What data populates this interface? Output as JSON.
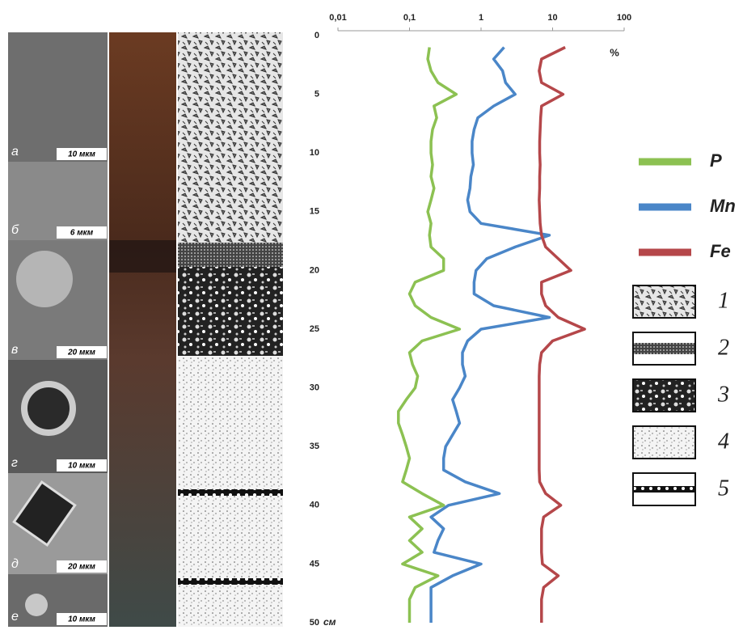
{
  "panels": [
    {
      "letter": "а",
      "scale": "10 мкм"
    },
    {
      "letter": "б",
      "scale": "6 мкм"
    },
    {
      "letter": "в",
      "scale": "20 мкм"
    },
    {
      "letter": "г",
      "scale": "10 мкм"
    },
    {
      "letter": "д",
      "scale": "20 мкм"
    },
    {
      "letter": "е",
      "scale": "10 мкм"
    }
  ],
  "lithology_legend": [
    "1",
    "2",
    "3",
    "4",
    "5"
  ],
  "chart_data": {
    "type": "line",
    "orientation": "vertical",
    "x_label": "%",
    "y_label": "см",
    "xscale": "log",
    "xlim": [
      0.01,
      100
    ],
    "xticks": [
      {
        "value": 0.01,
        "label": "0,01"
      },
      {
        "value": 0.1,
        "label": "0,1"
      },
      1,
      10,
      100
    ],
    "ylim": [
      0,
      50
    ],
    "yticks": [
      0,
      5,
      10,
      15,
      20,
      25,
      30,
      35,
      40,
      45,
      50
    ],
    "series": [
      {
        "name": "P",
        "color": "#8cc152",
        "depth": [
          1,
          2,
          3,
          4,
          5,
          6,
          7,
          8,
          9,
          10,
          11,
          12,
          13,
          14,
          15,
          16,
          17,
          18,
          19,
          20,
          21,
          22,
          23,
          24,
          25,
          26,
          27,
          28,
          29,
          30,
          31,
          32,
          33,
          34,
          35,
          36,
          37,
          38,
          39,
          40,
          41,
          42,
          43,
          44,
          45,
          46,
          47,
          48,
          49,
          50
        ],
        "values": [
          0.19,
          0.18,
          0.2,
          0.25,
          0.45,
          0.22,
          0.24,
          0.21,
          0.2,
          0.2,
          0.21,
          0.2,
          0.22,
          0.2,
          0.18,
          0.2,
          0.19,
          0.2,
          0.3,
          0.3,
          0.12,
          0.1,
          0.12,
          0.2,
          0.5,
          0.15,
          0.1,
          0.11,
          0.13,
          0.12,
          0.09,
          0.07,
          0.07,
          0.08,
          0.09,
          0.1,
          0.09,
          0.08,
          0.15,
          0.3,
          0.1,
          0.15,
          0.1,
          0.15,
          0.08,
          0.25,
          0.12,
          0.1,
          0.1,
          0.1
        ]
      },
      {
        "name": "Mn",
        "color": "#4a86c8",
        "depth": [
          1,
          2,
          3,
          4,
          5,
          6,
          7,
          8,
          9,
          10,
          11,
          12,
          13,
          14,
          15,
          16,
          17,
          18,
          19,
          20,
          21,
          22,
          23,
          24,
          25,
          26,
          27,
          28,
          29,
          30,
          31,
          32,
          33,
          34,
          35,
          36,
          37,
          38,
          39,
          40,
          41,
          42,
          43,
          44,
          45,
          46,
          47,
          48,
          49,
          50
        ],
        "values": [
          2.1,
          1.5,
          2,
          2.2,
          3,
          1.5,
          0.9,
          0.8,
          0.75,
          0.75,
          0.78,
          0.72,
          0.7,
          0.65,
          0.7,
          1,
          9,
          3,
          1.2,
          0.85,
          0.8,
          0.8,
          1.5,
          9,
          1,
          0.65,
          0.55,
          0.55,
          0.6,
          0.5,
          0.4,
          0.45,
          0.5,
          0.4,
          0.32,
          0.3,
          0.3,
          0.6,
          1.8,
          0.35,
          0.2,
          0.3,
          0.25,
          0.22,
          1,
          0.4,
          0.2,
          0.2,
          0.2,
          0.2
        ]
      },
      {
        "name": "Fe",
        "color": "#b5474a",
        "depth": [
          1,
          2,
          3,
          4,
          5,
          6,
          7,
          8,
          9,
          10,
          11,
          12,
          13,
          14,
          15,
          16,
          17,
          18,
          19,
          20,
          21,
          22,
          23,
          24,
          25,
          26,
          27,
          28,
          29,
          30,
          31,
          32,
          33,
          34,
          35,
          36,
          37,
          38,
          39,
          40,
          41,
          42,
          43,
          44,
          45,
          46,
          47,
          48,
          49,
          50
        ],
        "values": [
          15,
          7,
          6.5,
          7,
          14,
          7,
          6.8,
          6.7,
          6.6,
          6.6,
          6.7,
          6.6,
          6.6,
          6.5,
          6.6,
          6.7,
          7,
          8,
          12,
          18,
          7,
          7,
          8,
          12,
          28,
          10,
          7,
          6.6,
          6.5,
          6.5,
          6.5,
          6.5,
          6.5,
          6.5,
          6.5,
          6.5,
          6.5,
          6.6,
          8,
          13,
          7.5,
          7,
          7,
          7,
          7.2,
          12,
          7.5,
          7,
          7,
          7
        ]
      }
    ]
  }
}
